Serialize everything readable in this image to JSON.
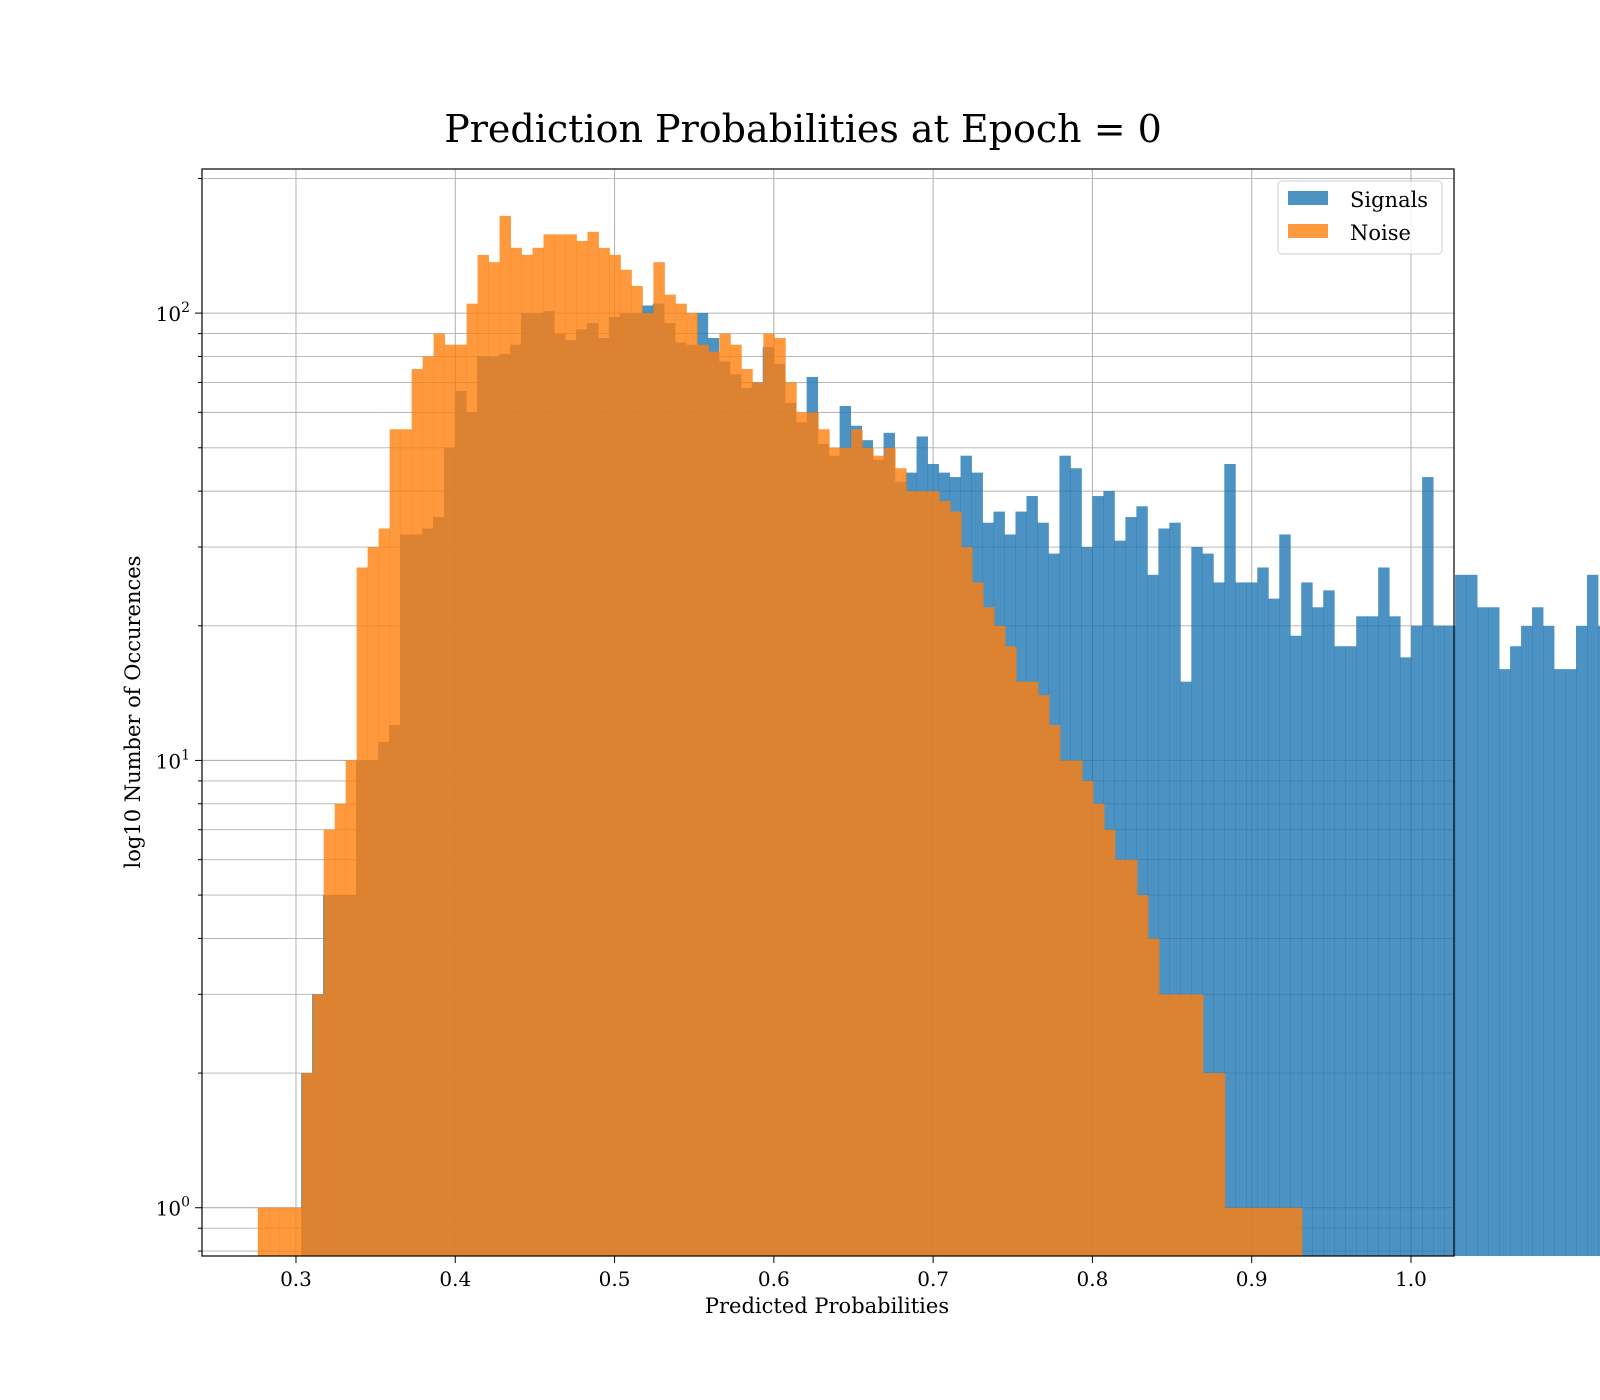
{
  "chart_data": {
    "type": "histogram",
    "title": "Prediction Probabilities at Epoch = 0",
    "xlabel": "Predicted Probabilities",
    "ylabel": "log10 Number of Occurences",
    "xlim": [
      0.241,
      1.027
    ],
    "ylim": [
      0.78,
      210
    ],
    "yscale": "log",
    "grid": true,
    "legend_position": "top-right",
    "x_ticks": [
      "0.3",
      "0.4",
      "0.5",
      "0.6",
      "0.7",
      "0.8",
      "0.9",
      "1.0"
    ],
    "y_ticks": [
      {
        "base": "10",
        "exp": "0"
      },
      {
        "base": "10",
        "exp": "1"
      },
      {
        "base": "10",
        "exp": "2"
      }
    ],
    "bin_width": 0.0069,
    "series": [
      {
        "name": "Signals",
        "color": "#1f77b4",
        "alpha": 0.8,
        "x_start": 0.3032,
        "counts": [
          2,
          3,
          5,
          5,
          5,
          10,
          10,
          11,
          12,
          32,
          32,
          33,
          35,
          50,
          67,
          60,
          80,
          80,
          81,
          85,
          100,
          100,
          101,
          90,
          87,
          92,
          95,
          88,
          98,
          100,
          100,
          104,
          105,
          95,
          86,
          85,
          92,
          100,
          79,
          76,
          83,
          67,
          70,
          83,
          61,
          55,
          52,
          54,
          73,
          44,
          53,
          42,
          49,
          44,
          35,
          44,
          35,
          48,
          38,
          40,
          46,
          61,
          41,
          38,
          38,
          35,
          40,
          45,
          40,
          41,
          36,
          38,
          43,
          30,
          30,
          44,
          31,
          32,
          24,
          40,
          30,
          34,
          29,
          30,
          31,
          19,
          15,
          29,
          20,
          16,
          31,
          21,
          30,
          18,
          21,
          35,
          31,
          34,
          16,
          20,
          28,
          20,
          43,
          20,
          20,
          26,
          26,
          22,
          22,
          16,
          18,
          20,
          22,
          20,
          16,
          16,
          20,
          26,
          20,
          17
        ],
        "overrides": [
          [
            0.551,
            100
          ],
          [
            0.5579,
            88
          ],
          [
            0.5648,
            78
          ],
          [
            0.5717,
            73
          ],
          [
            0.5786,
            68
          ],
          [
            0.5855,
            70
          ],
          [
            0.5924,
            84
          ],
          [
            0.5993,
            77
          ],
          [
            0.6062,
            63
          ],
          [
            0.6131,
            57
          ],
          [
            0.62,
            72
          ],
          [
            0.6269,
            51
          ],
          [
            0.6338,
            48
          ],
          [
            0.6407,
            62
          ],
          [
            0.6476,
            56
          ],
          [
            0.6545,
            52
          ],
          [
            0.6614,
            47
          ],
          [
            0.6683,
            54
          ],
          [
            0.6752,
            42
          ],
          [
            0.6821,
            44
          ],
          [
            0.689,
            53
          ],
          [
            0.6959,
            46
          ],
          [
            0.7028,
            44
          ],
          [
            0.7097,
            43
          ],
          [
            0.7166,
            48
          ],
          [
            0.7235,
            44
          ],
          [
            0.7304,
            34
          ],
          [
            0.7373,
            36
          ],
          [
            0.7442,
            32
          ],
          [
            0.7511,
            36
          ],
          [
            0.758,
            39
          ],
          [
            0.7649,
            34
          ],
          [
            0.7718,
            29
          ],
          [
            0.7787,
            48
          ],
          [
            0.7856,
            45
          ],
          [
            0.7925,
            30
          ],
          [
            0.7994,
            39
          ],
          [
            0.8063,
            40
          ],
          [
            0.8132,
            31
          ],
          [
            0.8201,
            35
          ],
          [
            0.827,
            37
          ],
          [
            0.8339,
            26
          ],
          [
            0.8408,
            33
          ],
          [
            0.8477,
            34
          ],
          [
            0.8546,
            15
          ],
          [
            0.8615,
            30
          ],
          [
            0.8684,
            29
          ],
          [
            0.8753,
            25
          ],
          [
            0.8822,
            46
          ],
          [
            0.8891,
            25
          ],
          [
            0.896,
            25
          ],
          [
            0.9029,
            27
          ],
          [
            0.9098,
            23
          ],
          [
            0.9167,
            32
          ],
          [
            0.9236,
            19
          ],
          [
            0.9305,
            25
          ],
          [
            0.9374,
            22
          ],
          [
            0.9443,
            24
          ],
          [
            0.9512,
            18
          ],
          [
            0.9581,
            18
          ],
          [
            0.965,
            21
          ],
          [
            0.9719,
            21
          ],
          [
            0.9788,
            27
          ],
          [
            0.9857,
            21
          ],
          [
            0.9926,
            17
          ]
        ]
      },
      {
        "name": "Noise",
        "color": "#ff7f0e",
        "alpha": 0.8,
        "x_start": 0.276,
        "counts": [
          1,
          1,
          1,
          1,
          2,
          3,
          7,
          8,
          10,
          27,
          30,
          33,
          55,
          55,
          75,
          80,
          90,
          85,
          85,
          105,
          135,
          130,
          165,
          140,
          135,
          140,
          150,
          150,
          150,
          145,
          152,
          140,
          135,
          125,
          115,
          100,
          130,
          110,
          105,
          100,
          85,
          82,
          90,
          85,
          75,
          70,
          90,
          88,
          70,
          60,
          60,
          55,
          50,
          50,
          55,
          50,
          48,
          50,
          45,
          40,
          40,
          40,
          38,
          36,
          30,
          25,
          22,
          20,
          18,
          15,
          15,
          14,
          12,
          10,
          10,
          9,
          8,
          7,
          6,
          6,
          5,
          4,
          3,
          3,
          3,
          3,
          2,
          2,
          1,
          1,
          1,
          1,
          1,
          1,
          1
        ]
      }
    ]
  }
}
